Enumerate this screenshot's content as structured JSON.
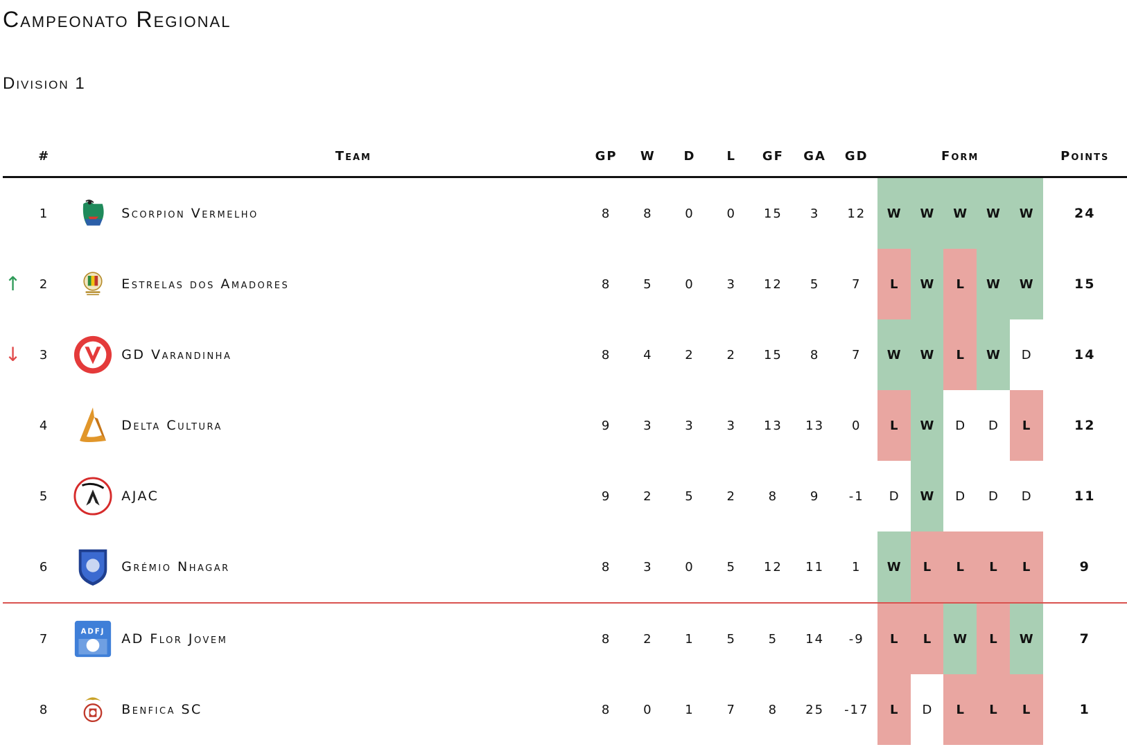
{
  "title": "Campeonato Regional",
  "subtitle": "Division 1",
  "headers": {
    "rank": "#",
    "team": "Team",
    "gp": "GP",
    "w": "W",
    "d": "D",
    "l": "L",
    "gf": "GF",
    "ga": "GA",
    "gd": "GD",
    "form": "Form",
    "points": "Points"
  },
  "colors": {
    "win": "#a9cfb4",
    "loss": "#e9a6a1",
    "up_arrow": "#2e9a58",
    "down_arrow": "#e04848",
    "cut_line": "#d9534f"
  },
  "rows": [
    {
      "rank": "1",
      "arrow": "",
      "team": "Scorpion Vermelho",
      "logo": "scorpion-vermelho-logo",
      "gp": "8",
      "w": "8",
      "d": "0",
      "l": "0",
      "gf": "15",
      "ga": "3",
      "gd": "12",
      "form": [
        "W",
        "W",
        "W",
        "W",
        "W"
      ],
      "points": "24"
    },
    {
      "rank": "2",
      "arrow": "↑",
      "team": "Estrelas dos Amadores",
      "logo": "estrelas-dos-amadores-logo",
      "gp": "8",
      "w": "5",
      "d": "0",
      "l": "3",
      "gf": "12",
      "ga": "5",
      "gd": "7",
      "form": [
        "L",
        "W",
        "L",
        "W",
        "W"
      ],
      "points": "15"
    },
    {
      "rank": "3",
      "arrow": "↓",
      "team": "GD Varandinha",
      "logo": "gd-varandinha-logo",
      "gp": "8",
      "w": "4",
      "d": "2",
      "l": "2",
      "gf": "15",
      "ga": "8",
      "gd": "7",
      "form": [
        "W",
        "W",
        "L",
        "W",
        "D"
      ],
      "points": "14"
    },
    {
      "rank": "4",
      "arrow": "",
      "team": "Delta Cultura",
      "logo": "delta-cultura-logo",
      "gp": "9",
      "w": "3",
      "d": "3",
      "l": "3",
      "gf": "13",
      "ga": "13",
      "gd": "0",
      "form": [
        "L",
        "W",
        "D",
        "D",
        "L"
      ],
      "points": "12"
    },
    {
      "rank": "5",
      "arrow": "",
      "team": "AJAC",
      "logo": "ajac-logo",
      "gp": "9",
      "w": "2",
      "d": "5",
      "l": "2",
      "gf": "8",
      "ga": "9",
      "gd": "-1",
      "form": [
        "D",
        "W",
        "D",
        "D",
        "D"
      ],
      "points": "11"
    },
    {
      "rank": "6",
      "arrow": "",
      "team": "Grémio Nhagar",
      "logo": "gremio-nhagar-logo",
      "gp": "8",
      "w": "3",
      "d": "0",
      "l": "5",
      "gf": "12",
      "ga": "11",
      "gd": "1",
      "form": [
        "W",
        "L",
        "L",
        "L",
        "L"
      ],
      "points": "9"
    },
    {
      "rank": "7",
      "arrow": "",
      "team": "AD Flor Jovem",
      "logo": "ad-flor-jovem-logo",
      "gp": "8",
      "w": "2",
      "d": "1",
      "l": "5",
      "gf": "5",
      "ga": "14",
      "gd": "-9",
      "form": [
        "L",
        "L",
        "W",
        "L",
        "W"
      ],
      "points": "7"
    },
    {
      "rank": "8",
      "arrow": "",
      "team": "Benfica SC",
      "logo": "benfica-sc-logo",
      "gp": "8",
      "w": "0",
      "d": "1",
      "l": "7",
      "gf": "8",
      "ga": "25",
      "gd": "-17",
      "form": [
        "L",
        "D",
        "L",
        "L",
        "L"
      ],
      "points": "1"
    }
  ]
}
